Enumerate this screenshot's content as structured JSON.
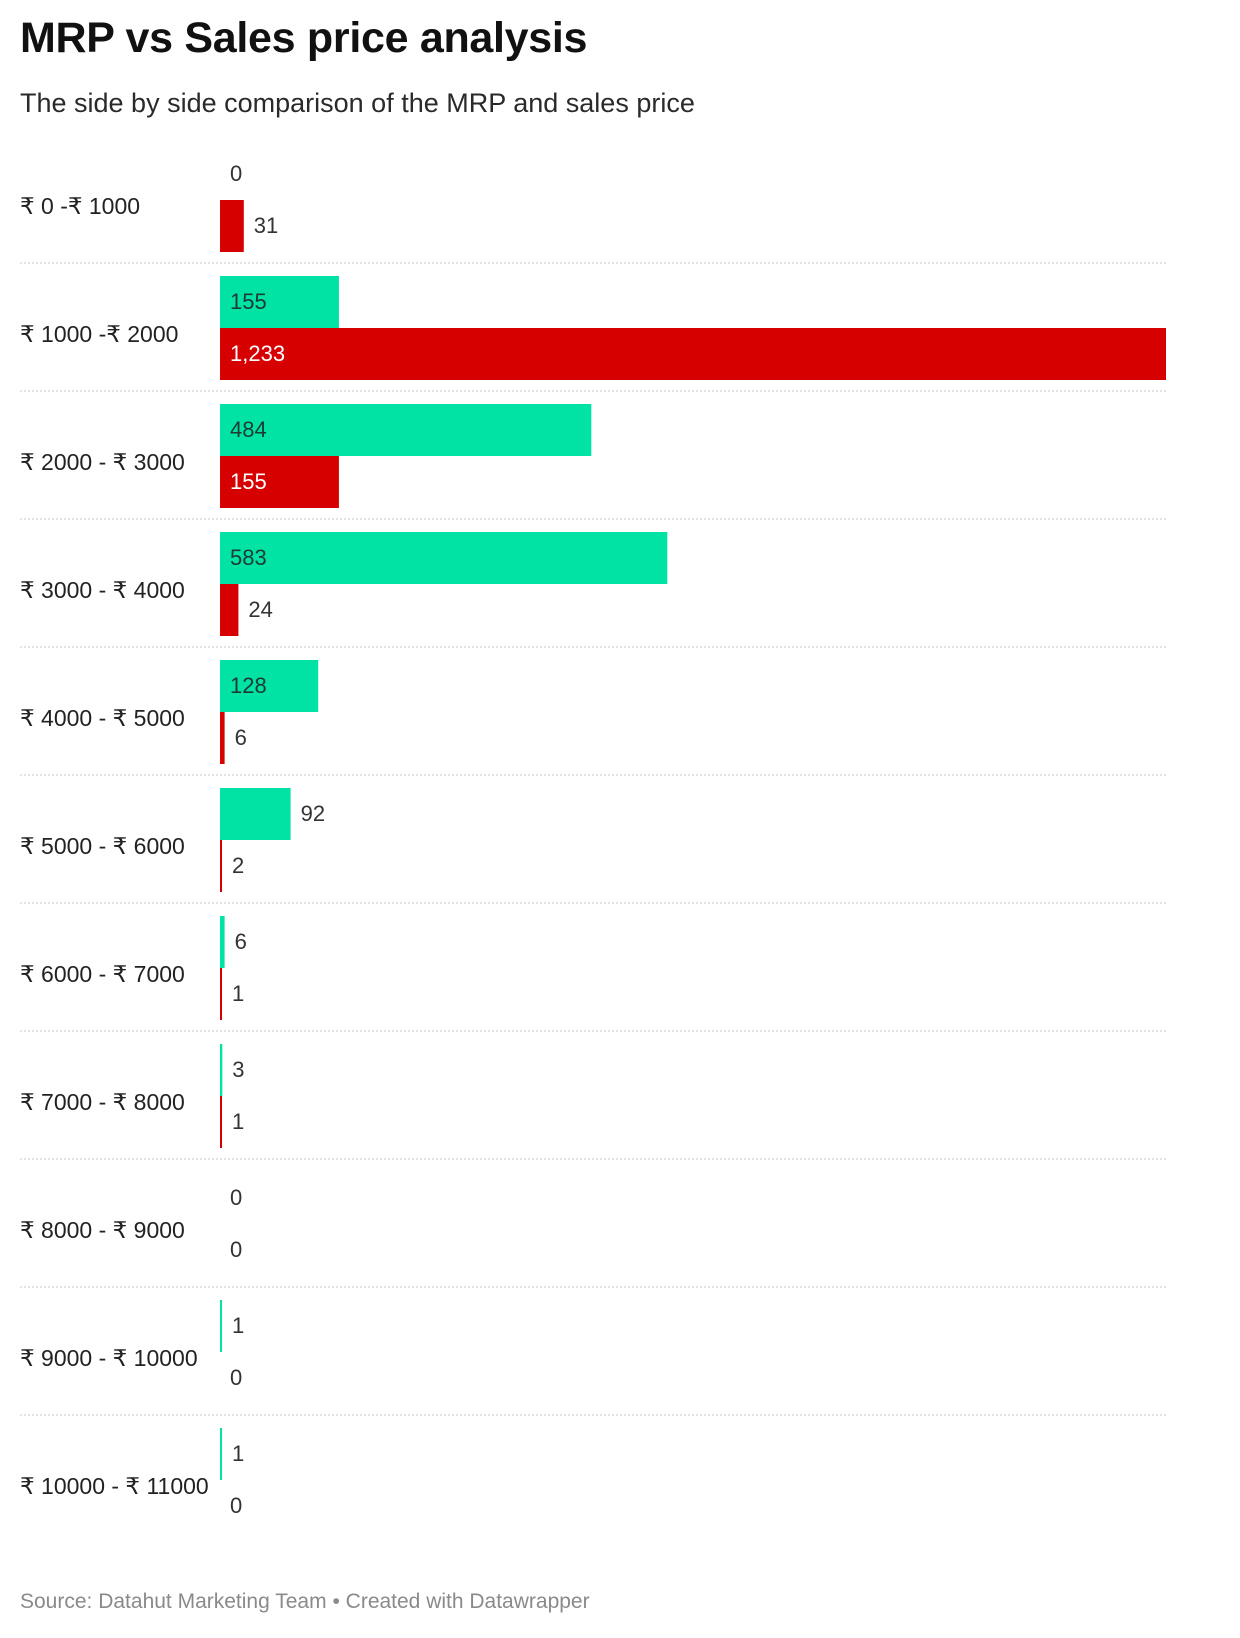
{
  "title": "MRP vs Sales price analysis",
  "subtitle": "The side by side comparison of the MRP and sales price",
  "footer": {
    "source": "Source: Datahut Marketing Team",
    "separator": "•",
    "credit": "Created with Datawrapper"
  },
  "colors": {
    "mrp": "#00e3a4",
    "sales": "#d60000",
    "separator": "#c8c8c8"
  },
  "chart_data": {
    "type": "bar",
    "orientation": "horizontal",
    "title": "MRP vs Sales price analysis",
    "subtitle": "The side by side comparison of the MRP and sales price",
    "categories": [
      "₹ 0 -₹ 1000",
      "₹ 1000 -₹ 2000",
      "₹ 2000 - ₹ 3000",
      "₹ 3000 - ₹ 4000",
      "₹ 4000 - ₹ 5000",
      "₹ 5000 - ₹ 6000",
      "₹ 6000 - ₹ 7000",
      "₹ 7000 - ₹ 8000",
      "₹ 8000 - ₹ 9000",
      "₹ 9000 - ₹ 10000",
      "₹ 10000 - ₹ 11000"
    ],
    "series": [
      {
        "color": "#00e3a4",
        "values": [
          0,
          155,
          484,
          583,
          128,
          92,
          6,
          3,
          0,
          1,
          1
        ],
        "labels": [
          "0",
          "155",
          "484",
          "583",
          "128",
          "92",
          "6",
          "3",
          "0",
          "1",
          "1"
        ]
      },
      {
        "color": "#d60000",
        "values": [
          31,
          1233,
          155,
          24,
          6,
          2,
          1,
          1,
          0,
          0,
          0
        ],
        "labels": [
          "31",
          "1,233",
          "155",
          "24",
          "6",
          "2",
          "1",
          "1",
          "0",
          "0",
          "0"
        ]
      }
    ],
    "xlim": [
      0,
      1233
    ],
    "grid": false,
    "legend": "none"
  }
}
